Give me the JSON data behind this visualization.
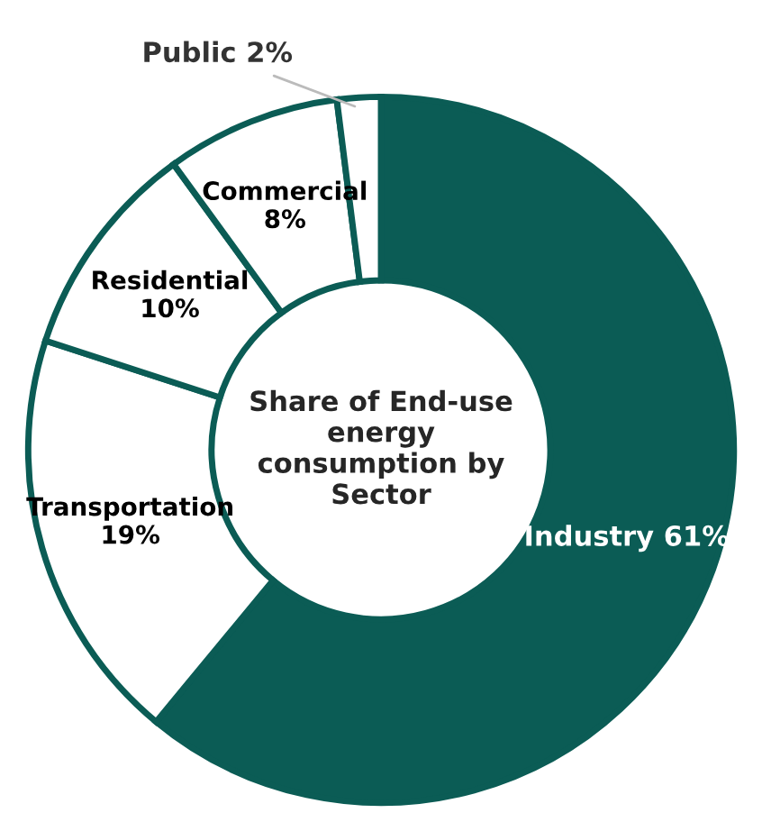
{
  "chart_data": {
    "type": "donut",
    "title": "Share of End-use energy consumption by Sector",
    "categories": [
      "Industry",
      "Transportation",
      "Residential",
      "Commercial",
      "Public"
    ],
    "values": [
      61,
      19,
      10,
      8,
      2
    ],
    "colors": [
      "#0b5c55",
      "#ffffff",
      "#ffffff",
      "#ffffff",
      "#ffffff"
    ],
    "value_labels": [
      "61%",
      "19%",
      "10%",
      "8%",
      "2%"
    ],
    "legend": false
  }
}
